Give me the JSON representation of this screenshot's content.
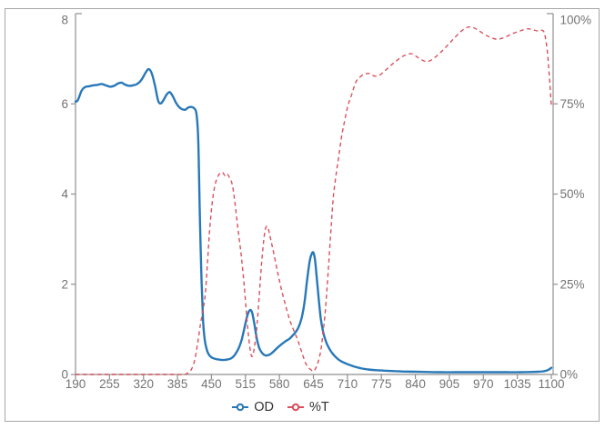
{
  "figure": {
    "background": "#ffffff",
    "frame_border_color": "#a6a6a6",
    "axis_color": "#8f8f8f",
    "tick_label_color": "#737373",
    "legend_text_color": "#333333"
  },
  "legend": {
    "items": [
      {
        "label": "OD",
        "color": "#2878b8"
      },
      {
        "label": "%T",
        "color": "#d9505c"
      }
    ]
  },
  "chart_data": {
    "type": "line",
    "x_ticks": [
      190,
      255,
      320,
      385,
      450,
      515,
      580,
      645,
      710,
      775,
      840,
      905,
      970,
      1035,
      1100
    ],
    "x_range": [
      190,
      1100
    ],
    "y_left": {
      "ticks": [
        0,
        2,
        4,
        6,
        8
      ],
      "range": [
        0,
        8
      ],
      "series": "OD"
    },
    "y_right": {
      "tick_values": [
        0,
        25,
        50,
        75,
        100
      ],
      "tick_labels": [
        "0%",
        "25%",
        "50%",
        "75%",
        "100%"
      ],
      "range": [
        0,
        100
      ],
      "series": "%T"
    },
    "grid": false,
    "legend_position": "bottom",
    "series": [
      {
        "name": "OD",
        "axis": "left",
        "color": "#2878b8",
        "line_style": "solid",
        "points": [
          [
            190,
            6.05
          ],
          [
            193,
            6.06
          ],
          [
            196,
            6.12
          ],
          [
            202,
            6.3
          ],
          [
            208,
            6.37
          ],
          [
            216,
            6.39
          ],
          [
            224,
            6.41
          ],
          [
            232,
            6.42
          ],
          [
            240,
            6.44
          ],
          [
            248,
            6.41
          ],
          [
            256,
            6.38
          ],
          [
            264,
            6.4
          ],
          [
            271,
            6.45
          ],
          [
            278,
            6.47
          ],
          [
            284,
            6.43
          ],
          [
            292,
            6.4
          ],
          [
            300,
            6.41
          ],
          [
            308,
            6.44
          ],
          [
            316,
            6.53
          ],
          [
            324,
            6.69
          ],
          [
            330,
            6.77
          ],
          [
            336,
            6.67
          ],
          [
            342,
            6.4
          ],
          [
            348,
            6.07
          ],
          [
            353,
            6.01
          ],
          [
            358,
            6.08
          ],
          [
            364,
            6.2
          ],
          [
            370,
            6.26
          ],
          [
            376,
            6.17
          ],
          [
            382,
            6.03
          ],
          [
            388,
            5.93
          ],
          [
            394,
            5.88
          ],
          [
            400,
            5.87
          ],
          [
            406,
            5.92
          ],
          [
            412,
            5.93
          ],
          [
            417,
            5.9
          ],
          [
            421,
            5.8
          ],
          [
            424,
            5.4
          ],
          [
            426,
            4.6
          ],
          [
            428,
            3.4
          ],
          [
            431,
            2.1
          ],
          [
            434,
            1.2
          ],
          [
            437,
            0.78
          ],
          [
            441,
            0.55
          ],
          [
            445,
            0.44
          ],
          [
            450,
            0.38
          ],
          [
            456,
            0.35
          ],
          [
            464,
            0.33
          ],
          [
            472,
            0.32
          ],
          [
            480,
            0.33
          ],
          [
            488,
            0.36
          ],
          [
            495,
            0.44
          ],
          [
            502,
            0.58
          ],
          [
            508,
            0.78
          ],
          [
            514,
            1.08
          ],
          [
            519,
            1.32
          ],
          [
            524,
            1.43
          ],
          [
            528,
            1.36
          ],
          [
            532,
            1.12
          ],
          [
            537,
            0.78
          ],
          [
            542,
            0.57
          ],
          [
            548,
            0.46
          ],
          [
            554,
            0.42
          ],
          [
            561,
            0.44
          ],
          [
            568,
            0.5
          ],
          [
            576,
            0.59
          ],
          [
            584,
            0.67
          ],
          [
            592,
            0.74
          ],
          [
            599,
            0.79
          ],
          [
            605,
            0.86
          ],
          [
            611,
            0.94
          ],
          [
            617,
            1.06
          ],
          [
            623,
            1.28
          ],
          [
            628,
            1.6
          ],
          [
            633,
            2.1
          ],
          [
            638,
            2.52
          ],
          [
            642,
            2.68
          ],
          [
            645,
            2.7
          ],
          [
            648,
            2.55
          ],
          [
            651,
            2.2
          ],
          [
            655,
            1.7
          ],
          [
            659,
            1.25
          ],
          [
            664,
            0.92
          ],
          [
            670,
            0.7
          ],
          [
            677,
            0.54
          ],
          [
            684,
            0.43
          ],
          [
            692,
            0.34
          ],
          [
            700,
            0.28
          ],
          [
            710,
            0.23
          ],
          [
            722,
            0.18
          ],
          [
            735,
            0.14
          ],
          [
            750,
            0.11
          ],
          [
            765,
            0.095
          ],
          [
            780,
            0.085
          ],
          [
            800,
            0.075
          ],
          [
            820,
            0.065
          ],
          [
            840,
            0.06
          ],
          [
            865,
            0.055
          ],
          [
            890,
            0.05
          ],
          [
            915,
            0.05
          ],
          [
            940,
            0.05
          ],
          [
            965,
            0.05
          ],
          [
            990,
            0.05
          ],
          [
            1015,
            0.05
          ],
          [
            1040,
            0.05
          ],
          [
            1060,
            0.055
          ],
          [
            1075,
            0.06
          ],
          [
            1085,
            0.07
          ],
          [
            1092,
            0.09
          ],
          [
            1097,
            0.12
          ],
          [
            1100,
            0.15
          ]
        ]
      },
      {
        "name": "%T",
        "axis": "right",
        "color": "#d9505c",
        "line_style": "dashed",
        "points": [
          [
            190,
            0
          ],
          [
            240,
            0
          ],
          [
            290,
            0
          ],
          [
            340,
            0
          ],
          [
            380,
            0
          ],
          [
            398,
            0
          ],
          [
            406,
            0.5
          ],
          [
            412,
            1.5
          ],
          [
            418,
            4
          ],
          [
            424,
            9
          ],
          [
            429,
            14
          ],
          [
            434,
            18
          ],
          [
            438,
            22
          ],
          [
            442,
            30
          ],
          [
            446,
            39
          ],
          [
            451,
            47
          ],
          [
            456,
            52
          ],
          [
            461,
            54.5
          ],
          [
            466,
            55.7
          ],
          [
            471,
            56
          ],
          [
            476,
            55.1
          ],
          [
            480,
            55.6
          ],
          [
            485,
            54.4
          ],
          [
            490,
            52.5
          ],
          [
            495,
            47.5
          ],
          [
            501,
            40
          ],
          [
            507,
            33
          ],
          [
            513,
            24
          ],
          [
            518,
            15
          ],
          [
            523,
            8
          ],
          [
            527,
            5
          ],
          [
            531,
            6.5
          ],
          [
            536,
            12
          ],
          [
            541,
            21
          ],
          [
            546,
            31
          ],
          [
            551,
            38.5
          ],
          [
            555,
            41
          ],
          [
            559,
            40.2
          ],
          [
            564,
            37
          ],
          [
            570,
            33
          ],
          [
            577,
            28
          ],
          [
            584,
            23.5
          ],
          [
            592,
            19
          ],
          [
            600,
            15
          ],
          [
            608,
            12
          ],
          [
            615,
            9.5
          ],
          [
            622,
            6.5
          ],
          [
            629,
            3.5
          ],
          [
            635,
            2
          ],
          [
            641,
            1.2
          ],
          [
            645,
            0.9
          ],
          [
            649,
            1.6
          ],
          [
            654,
            3.5
          ],
          [
            659,
            6.5
          ],
          [
            663,
            11
          ],
          [
            668,
            18
          ],
          [
            673,
            28
          ],
          [
            678,
            39
          ],
          [
            683,
            49
          ],
          [
            688,
            55
          ],
          [
            693,
            60
          ],
          [
            699,
            66
          ],
          [
            705,
            70.5
          ],
          [
            711,
            74.5
          ],
          [
            718,
            77.5
          ],
          [
            726,
            81
          ],
          [
            733,
            82.3
          ],
          [
            742,
            83.2
          ],
          [
            752,
            83.4
          ],
          [
            762,
            82.7
          ],
          [
            772,
            83
          ],
          [
            785,
            84.6
          ],
          [
            800,
            86.5
          ],
          [
            815,
            88.1
          ],
          [
            825,
            88.7
          ],
          [
            832,
            88.9
          ],
          [
            840,
            88.3
          ],
          [
            852,
            87.2
          ],
          [
            863,
            86.7
          ],
          [
            875,
            87.6
          ],
          [
            890,
            89.5
          ],
          [
            902,
            91.3
          ],
          [
            913,
            93
          ],
          [
            925,
            94.8
          ],
          [
            935,
            95.9
          ],
          [
            942,
            96.3
          ],
          [
            950,
            96.2
          ],
          [
            960,
            95.4
          ],
          [
            972,
            94.3
          ],
          [
            984,
            93.4
          ],
          [
            997,
            92.9
          ],
          [
            1010,
            93.4
          ],
          [
            1025,
            94.4
          ],
          [
            1040,
            95.2
          ],
          [
            1055,
            95.8
          ],
          [
            1065,
            95.5
          ],
          [
            1075,
            95.2
          ],
          [
            1082,
            95.4
          ],
          [
            1087,
            94.5
          ],
          [
            1092,
            90
          ],
          [
            1096,
            83
          ],
          [
            1100,
            74.5
          ]
        ]
      }
    ]
  }
}
